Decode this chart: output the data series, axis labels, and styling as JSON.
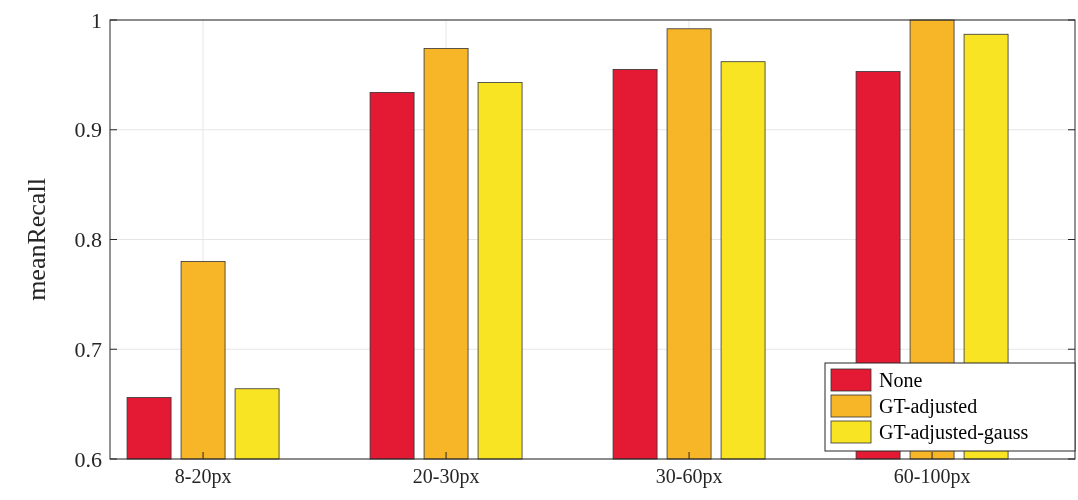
{
  "chart_data": {
    "type": "bar",
    "ylabel": "meanRecall",
    "categories": [
      "8-20px",
      "20-30px",
      "30-60px",
      "60-100px"
    ],
    "series": [
      {
        "name": "None",
        "color": "#e41a35",
        "values": [
          0.656,
          0.934,
          0.955,
          0.953
        ]
      },
      {
        "name": "GT-adjusted",
        "color": "#f7b528",
        "values": [
          0.78,
          0.974,
          0.992,
          1.0
        ]
      },
      {
        "name": "GT-adjusted-gauss",
        "color": "#f9e424",
        "values": [
          0.664,
          0.943,
          0.962,
          0.987
        ]
      }
    ],
    "ylim": [
      0.6,
      1
    ],
    "yticks": [
      0.6,
      0.7,
      0.8,
      0.9,
      1
    ],
    "grid": true,
    "legend": "bottom right"
  }
}
